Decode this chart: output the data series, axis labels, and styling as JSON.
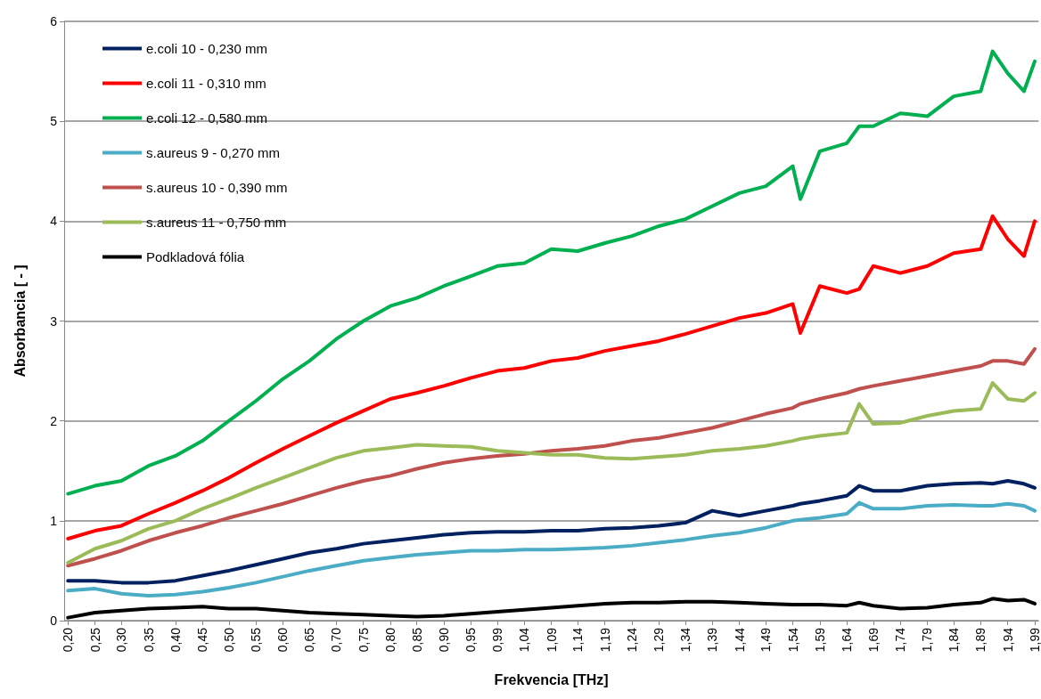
{
  "chart_data": {
    "type": "line",
    "xlabel": "Frekvencia [THz]",
    "ylabel": "Absorbancia [ - ]",
    "x": [
      0.2,
      0.25,
      0.299,
      0.349,
      0.399,
      0.449,
      0.498,
      0.548,
      0.598,
      0.647,
      0.697,
      0.747,
      0.797,
      0.846,
      0.896,
      0.946,
      0.995,
      1.045,
      1.095,
      1.144,
      1.194,
      1.244,
      1.294,
      1.343,
      1.393,
      1.443,
      1.492,
      1.542,
      1.556,
      1.592,
      1.642,
      1.665,
      1.691,
      1.741,
      1.791,
      1.84,
      1.89,
      1.912,
      1.94,
      1.97,
      1.99
    ],
    "xlim": [
      0.193,
      1.997
    ],
    "xticks": [
      {
        "value": 0.2,
        "label": "0,20"
      },
      {
        "value": 0.25,
        "label": "0,25"
      },
      {
        "value": 0.299,
        "label": "0,30"
      },
      {
        "value": 0.349,
        "label": "0,35"
      },
      {
        "value": 0.399,
        "label": "0,40"
      },
      {
        "value": 0.449,
        "label": "0,45"
      },
      {
        "value": 0.498,
        "label": "0,50"
      },
      {
        "value": 0.548,
        "label": "0,55"
      },
      {
        "value": 0.598,
        "label": "0,60"
      },
      {
        "value": 0.647,
        "label": "0,65"
      },
      {
        "value": 0.697,
        "label": "0,70"
      },
      {
        "value": 0.747,
        "label": "0,75"
      },
      {
        "value": 0.797,
        "label": "0,80"
      },
      {
        "value": 0.846,
        "label": "0,85"
      },
      {
        "value": 0.896,
        "label": "0,90"
      },
      {
        "value": 0.946,
        "label": "0,95"
      },
      {
        "value": 0.995,
        "label": "0,99"
      },
      {
        "value": 1.045,
        "label": "1,04"
      },
      {
        "value": 1.095,
        "label": "1,09"
      },
      {
        "value": 1.144,
        "label": "1,14"
      },
      {
        "value": 1.194,
        "label": "1,19"
      },
      {
        "value": 1.244,
        "label": "1,24"
      },
      {
        "value": 1.294,
        "label": "1,29"
      },
      {
        "value": 1.343,
        "label": "1,34"
      },
      {
        "value": 1.393,
        "label": "1,39"
      },
      {
        "value": 1.443,
        "label": "1,44"
      },
      {
        "value": 1.492,
        "label": "1,49"
      },
      {
        "value": 1.542,
        "label": "1,54"
      },
      {
        "value": 1.592,
        "label": "1,59"
      },
      {
        "value": 1.642,
        "label": "1,64"
      },
      {
        "value": 1.691,
        "label": "1,69"
      },
      {
        "value": 1.741,
        "label": "1,74"
      },
      {
        "value": 1.791,
        "label": "1,79"
      },
      {
        "value": 1.84,
        "label": "1,84"
      },
      {
        "value": 1.89,
        "label": "1,89"
      },
      {
        "value": 1.94,
        "label": "1,94"
      },
      {
        "value": 1.99,
        "label": "1,99"
      }
    ],
    "ylim": [
      0,
      6
    ],
    "yticks": [
      0,
      1,
      2,
      3,
      4,
      5,
      6
    ],
    "grid": "y",
    "legend": "top left",
    "series": [
      {
        "name": "e.coli 10 - 0,230 mm",
        "color": "#002060",
        "values": [
          0.4,
          0.4,
          0.38,
          0.38,
          0.4,
          0.45,
          0.5,
          0.56,
          0.62,
          0.68,
          0.72,
          0.77,
          0.8,
          0.83,
          0.86,
          0.88,
          0.89,
          0.89,
          0.9,
          0.9,
          0.92,
          0.93,
          0.95,
          0.98,
          1.1,
          1.05,
          1.1,
          1.15,
          1.17,
          1.2,
          1.25,
          1.35,
          1.3,
          1.3,
          1.35,
          1.37,
          1.38,
          1.37,
          1.4,
          1.37,
          1.33
        ]
      },
      {
        "name": "e.coli 11 - 0,310 mm",
        "color": "#ff0000",
        "values": [
          0.82,
          0.9,
          0.95,
          1.07,
          1.18,
          1.3,
          1.43,
          1.58,
          1.72,
          1.85,
          1.98,
          2.1,
          2.22,
          2.28,
          2.35,
          2.43,
          2.5,
          2.53,
          2.6,
          2.63,
          2.7,
          2.75,
          2.8,
          2.87,
          2.95,
          3.03,
          3.08,
          3.17,
          2.88,
          3.35,
          3.28,
          3.32,
          3.55,
          3.48,
          3.55,
          3.68,
          3.72,
          4.05,
          3.82,
          3.65,
          4.0
        ]
      },
      {
        "name": "e.coli 12 - 0,580 mm",
        "color": "#00b050",
        "values": [
          1.27,
          1.35,
          1.4,
          1.55,
          1.65,
          1.8,
          2.0,
          2.2,
          2.42,
          2.6,
          2.82,
          3.0,
          3.15,
          3.23,
          3.35,
          3.45,
          3.55,
          3.58,
          3.72,
          3.7,
          3.78,
          3.85,
          3.95,
          4.02,
          4.15,
          4.28,
          4.35,
          4.55,
          4.22,
          4.7,
          4.78,
          4.95,
          4.95,
          5.08,
          5.05,
          5.25,
          5.3,
          5.7,
          5.48,
          5.3,
          5.6
        ]
      },
      {
        "name": "s.aureus 9 - 0,270 mm",
        "color": "#4bacc6",
        "values": [
          0.3,
          0.32,
          0.27,
          0.25,
          0.26,
          0.29,
          0.33,
          0.38,
          0.44,
          0.5,
          0.55,
          0.6,
          0.63,
          0.66,
          0.68,
          0.7,
          0.7,
          0.71,
          0.71,
          0.72,
          0.73,
          0.75,
          0.78,
          0.81,
          0.85,
          0.88,
          0.93,
          1.0,
          1.01,
          1.03,
          1.07,
          1.18,
          1.12,
          1.12,
          1.15,
          1.16,
          1.15,
          1.15,
          1.17,
          1.15,
          1.1
        ]
      },
      {
        "name": "s.aureus 10 - 0,390 mm",
        "color": "#c0504d",
        "values": [
          0.55,
          0.62,
          0.7,
          0.8,
          0.88,
          0.95,
          1.03,
          1.1,
          1.17,
          1.25,
          1.33,
          1.4,
          1.45,
          1.52,
          1.58,
          1.62,
          1.65,
          1.67,
          1.7,
          1.72,
          1.75,
          1.8,
          1.83,
          1.88,
          1.93,
          2.0,
          2.07,
          2.13,
          2.17,
          2.22,
          2.28,
          2.32,
          2.35,
          2.4,
          2.45,
          2.5,
          2.55,
          2.6,
          2.6,
          2.57,
          2.72
        ]
      },
      {
        "name": "s.aureus 11 - 0,750 mm",
        "color": "#9bbb59",
        "values": [
          0.58,
          0.72,
          0.8,
          0.92,
          1.0,
          1.12,
          1.22,
          1.33,
          1.43,
          1.53,
          1.63,
          1.7,
          1.73,
          1.76,
          1.75,
          1.74,
          1.7,
          1.68,
          1.66,
          1.66,
          1.63,
          1.62,
          1.64,
          1.66,
          1.7,
          1.72,
          1.75,
          1.8,
          1.82,
          1.85,
          1.88,
          2.17,
          1.97,
          1.98,
          2.05,
          2.1,
          2.12,
          2.38,
          2.22,
          2.2,
          2.28
        ]
      },
      {
        "name": "Podkladová fólia",
        "color": "#000000",
        "values": [
          0.03,
          0.08,
          0.1,
          0.12,
          0.13,
          0.14,
          0.12,
          0.12,
          0.1,
          0.08,
          0.07,
          0.06,
          0.05,
          0.04,
          0.05,
          0.07,
          0.09,
          0.11,
          0.13,
          0.15,
          0.17,
          0.18,
          0.18,
          0.19,
          0.19,
          0.18,
          0.17,
          0.16,
          0.16,
          0.16,
          0.15,
          0.18,
          0.15,
          0.12,
          0.13,
          0.16,
          0.18,
          0.22,
          0.2,
          0.21,
          0.17
        ]
      }
    ]
  }
}
